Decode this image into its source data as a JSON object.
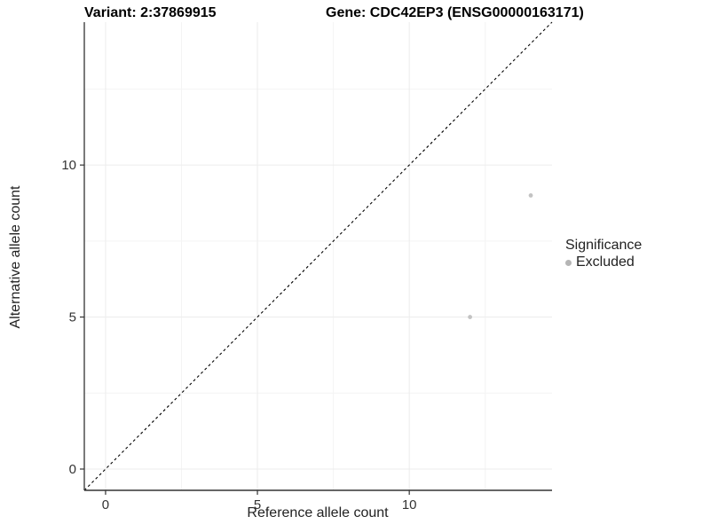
{
  "header": {
    "variant_title": "Variant: 2:37869915",
    "gene_title": "Gene: CDC42EP3 (ENSG00000163171)"
  },
  "legend": {
    "title": "Significance",
    "items": [
      {
        "label": "Excluded",
        "color": "#b5b5b5"
      }
    ]
  },
  "chart_data": {
    "type": "scatter",
    "xlabel": "Reference allele count",
    "ylabel": "Alternative allele count",
    "xlim": [
      -0.7,
      14.7
    ],
    "ylim": [
      -0.7,
      14.7
    ],
    "x_ticks": [
      0,
      5,
      10
    ],
    "y_ticks": [
      0,
      5,
      10
    ],
    "x_minor_ticks": [
      2.5,
      7.5,
      12.5
    ],
    "y_minor_ticks": [
      2.5,
      7.5,
      12.5
    ],
    "grid": true,
    "legend_position": "right",
    "identity_line": {
      "style": "dashed",
      "from": [
        -0.7,
        -0.7
      ],
      "to": [
        14.7,
        14.7
      ],
      "color": "#000000"
    },
    "series": [
      {
        "name": "Excluded",
        "color": "#c3c3c3",
        "points": [
          [
            12,
            5
          ],
          [
            14,
            9
          ]
        ]
      }
    ],
    "colors": {
      "axis_line": "#333333",
      "tick_text": "#333333",
      "grid_major": "#ececec",
      "grid_minor": "#f4f4f4"
    }
  }
}
